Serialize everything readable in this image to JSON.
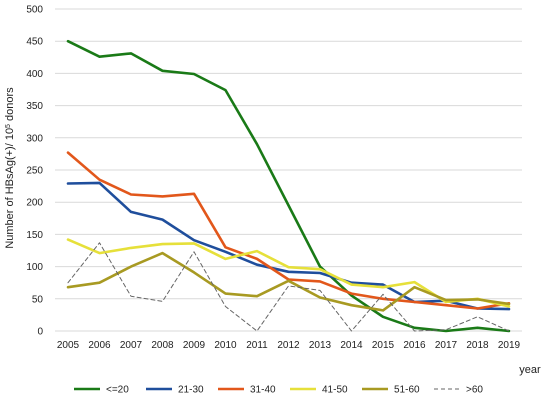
{
  "chart_data": {
    "type": "line",
    "ylabel_main": "Number of HBsAg(+)/ 10",
    "ylabel_sup": "5",
    "ylabel_tail": " donors",
    "xlabel": "year",
    "ylim": [
      0,
      500
    ],
    "yticks": [
      0,
      50,
      100,
      150,
      200,
      250,
      300,
      350,
      400,
      450,
      500
    ],
    "grid": "horizontal",
    "legend_position": "bottom",
    "x": [
      "2005",
      "2006",
      "2007",
      "2008",
      "2009",
      "2010",
      "2011",
      "2012",
      "2013",
      "2014",
      "2015",
      "2016",
      "2017",
      "2018",
      "2019"
    ],
    "series": [
      {
        "name": "<=20",
        "color": "#1a7a17",
        "dash": "",
        "values": [
          450,
          426,
          431,
          404,
          399,
          374,
          290,
          195,
          100,
          55,
          22,
          5,
          0,
          5,
          0
        ]
      },
      {
        "name": "21-30",
        "color": "#1f4e9c",
        "dash": "",
        "values": [
          229,
          230,
          185,
          173,
          141,
          123,
          103,
          92,
          90,
          75,
          72,
          45,
          47,
          35,
          34
        ]
      },
      {
        "name": "31-40",
        "color": "#e2571b",
        "dash": "",
        "values": [
          277,
          235,
          212,
          209,
          213,
          130,
          112,
          80,
          77,
          58,
          50,
          45,
          40,
          35,
          43
        ]
      },
      {
        "name": "41-50",
        "color": "#e6e03a",
        "dash": "",
        "values": [
          142,
          121,
          129,
          135,
          136,
          112,
          124,
          99,
          96,
          72,
          68,
          76,
          45,
          50,
          38
        ]
      },
      {
        "name": "51-60",
        "color": "#a89a22",
        "dash": "",
        "values": [
          68,
          75,
          100,
          121,
          91,
          58,
          54,
          78,
          52,
          40,
          32,
          68,
          48,
          49,
          42
        ]
      },
      {
        "name": ">60",
        "color": "#666666",
        "dash": "4,3",
        "values": [
          75,
          137,
          54,
          46,
          123,
          38,
          0,
          70,
          63,
          0,
          57,
          0,
          2,
          22,
          0
        ]
      }
    ]
  }
}
